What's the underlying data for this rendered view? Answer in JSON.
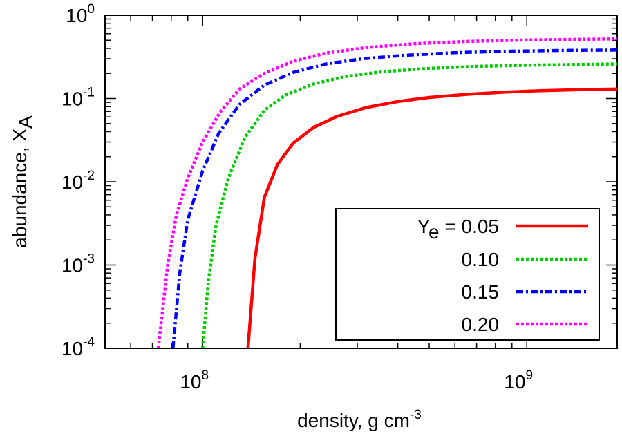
{
  "chart_data": {
    "type": "line",
    "xscale": "log",
    "yscale": "log",
    "xlabel": {
      "base": "density, g cm",
      "sup": "-3"
    },
    "ylabel": {
      "base": "abundance, X",
      "sub": "A"
    },
    "xlim": [
      50000000.0,
      1900000000.0
    ],
    "ylim": [
      0.0001,
      1
    ],
    "x_ticks": [
      {
        "value": 100000000.0,
        "mantissa": "10",
        "exp": "8"
      },
      {
        "value": 1000000000.0,
        "mantissa": "10",
        "exp": "9"
      }
    ],
    "y_ticks": [
      {
        "value": 1,
        "mantissa": "10",
        "exp": "0"
      },
      {
        "value": 0.1,
        "mantissa": "10",
        "exp": "-1"
      },
      {
        "value": 0.01,
        "mantissa": "10",
        "exp": "-2"
      },
      {
        "value": 0.001,
        "mantissa": "10",
        "exp": "-3"
      },
      {
        "value": 0.0001,
        "mantissa": "10",
        "exp": "-4"
      }
    ],
    "legend": {
      "title_base": "Y",
      "title_sub": "e",
      "title_rest": " = "
    },
    "series": [
      {
        "name": "0.05",
        "color": "#ff0000",
        "dash": "solid",
        "x": [
          138000000.0,
          145000000.0,
          155000000.0,
          170000000.0,
          190000000.0,
          220000000.0,
          260000000.0,
          320000000.0,
          400000000.0,
          500000000.0,
          650000000.0,
          850000000.0,
          1100000000.0,
          1500000000.0,
          1900000000.0
        ],
        "y": [
          0.0001,
          0.0012,
          0.0065,
          0.016,
          0.029,
          0.045,
          0.061,
          0.078,
          0.092,
          0.103,
          0.112,
          0.119,
          0.124,
          0.128,
          0.13
        ]
      },
      {
        "name": "0.10",
        "color": "#00cc00",
        "dash": "dotted",
        "x": [
          100000000.0,
          104000000.0,
          110000000.0,
          120000000.0,
          135000000.0,
          155000000.0,
          180000000.0,
          220000000.0,
          280000000.0,
          360000000.0,
          500000000.0,
          700000000.0,
          1000000000.0,
          1400000000.0,
          1900000000.0
        ],
        "y": [
          0.0001,
          0.0006,
          0.003,
          0.011,
          0.034,
          0.072,
          0.11,
          0.15,
          0.185,
          0.21,
          0.23,
          0.243,
          0.251,
          0.256,
          0.26
        ]
      },
      {
        "name": "0.15",
        "color": "#0000ff",
        "dash": "dashdot",
        "x": [
          81000000.0,
          85000000.0,
          90000000.0,
          100000000.0,
          112000000.0,
          130000000.0,
          155000000.0,
          190000000.0,
          240000000.0,
          310000000.0,
          420000000.0,
          600000000.0,
          900000000.0,
          1300000000.0,
          1900000000.0
        ],
        "y": [
          0.0001,
          0.0008,
          0.0035,
          0.0135,
          0.038,
          0.085,
          0.145,
          0.205,
          0.26,
          0.3,
          0.33,
          0.355,
          0.37,
          0.378,
          0.382
        ]
      },
      {
        "name": "0.20",
        "color": "#ff00ff",
        "dash": "dotted",
        "x": [
          73000000.0,
          78000000.0,
          83000000.0,
          90000000.0,
          100000000.0,
          113000000.0,
          130000000.0,
          155000000.0,
          190000000.0,
          240000000.0,
          320000000.0,
          450000000.0,
          650000000.0,
          1000000000.0,
          1900000000.0
        ],
        "y": [
          0.0001,
          0.001,
          0.004,
          0.011,
          0.03,
          0.068,
          0.13,
          0.2,
          0.28,
          0.35,
          0.41,
          0.455,
          0.485,
          0.505,
          0.52
        ]
      }
    ]
  }
}
